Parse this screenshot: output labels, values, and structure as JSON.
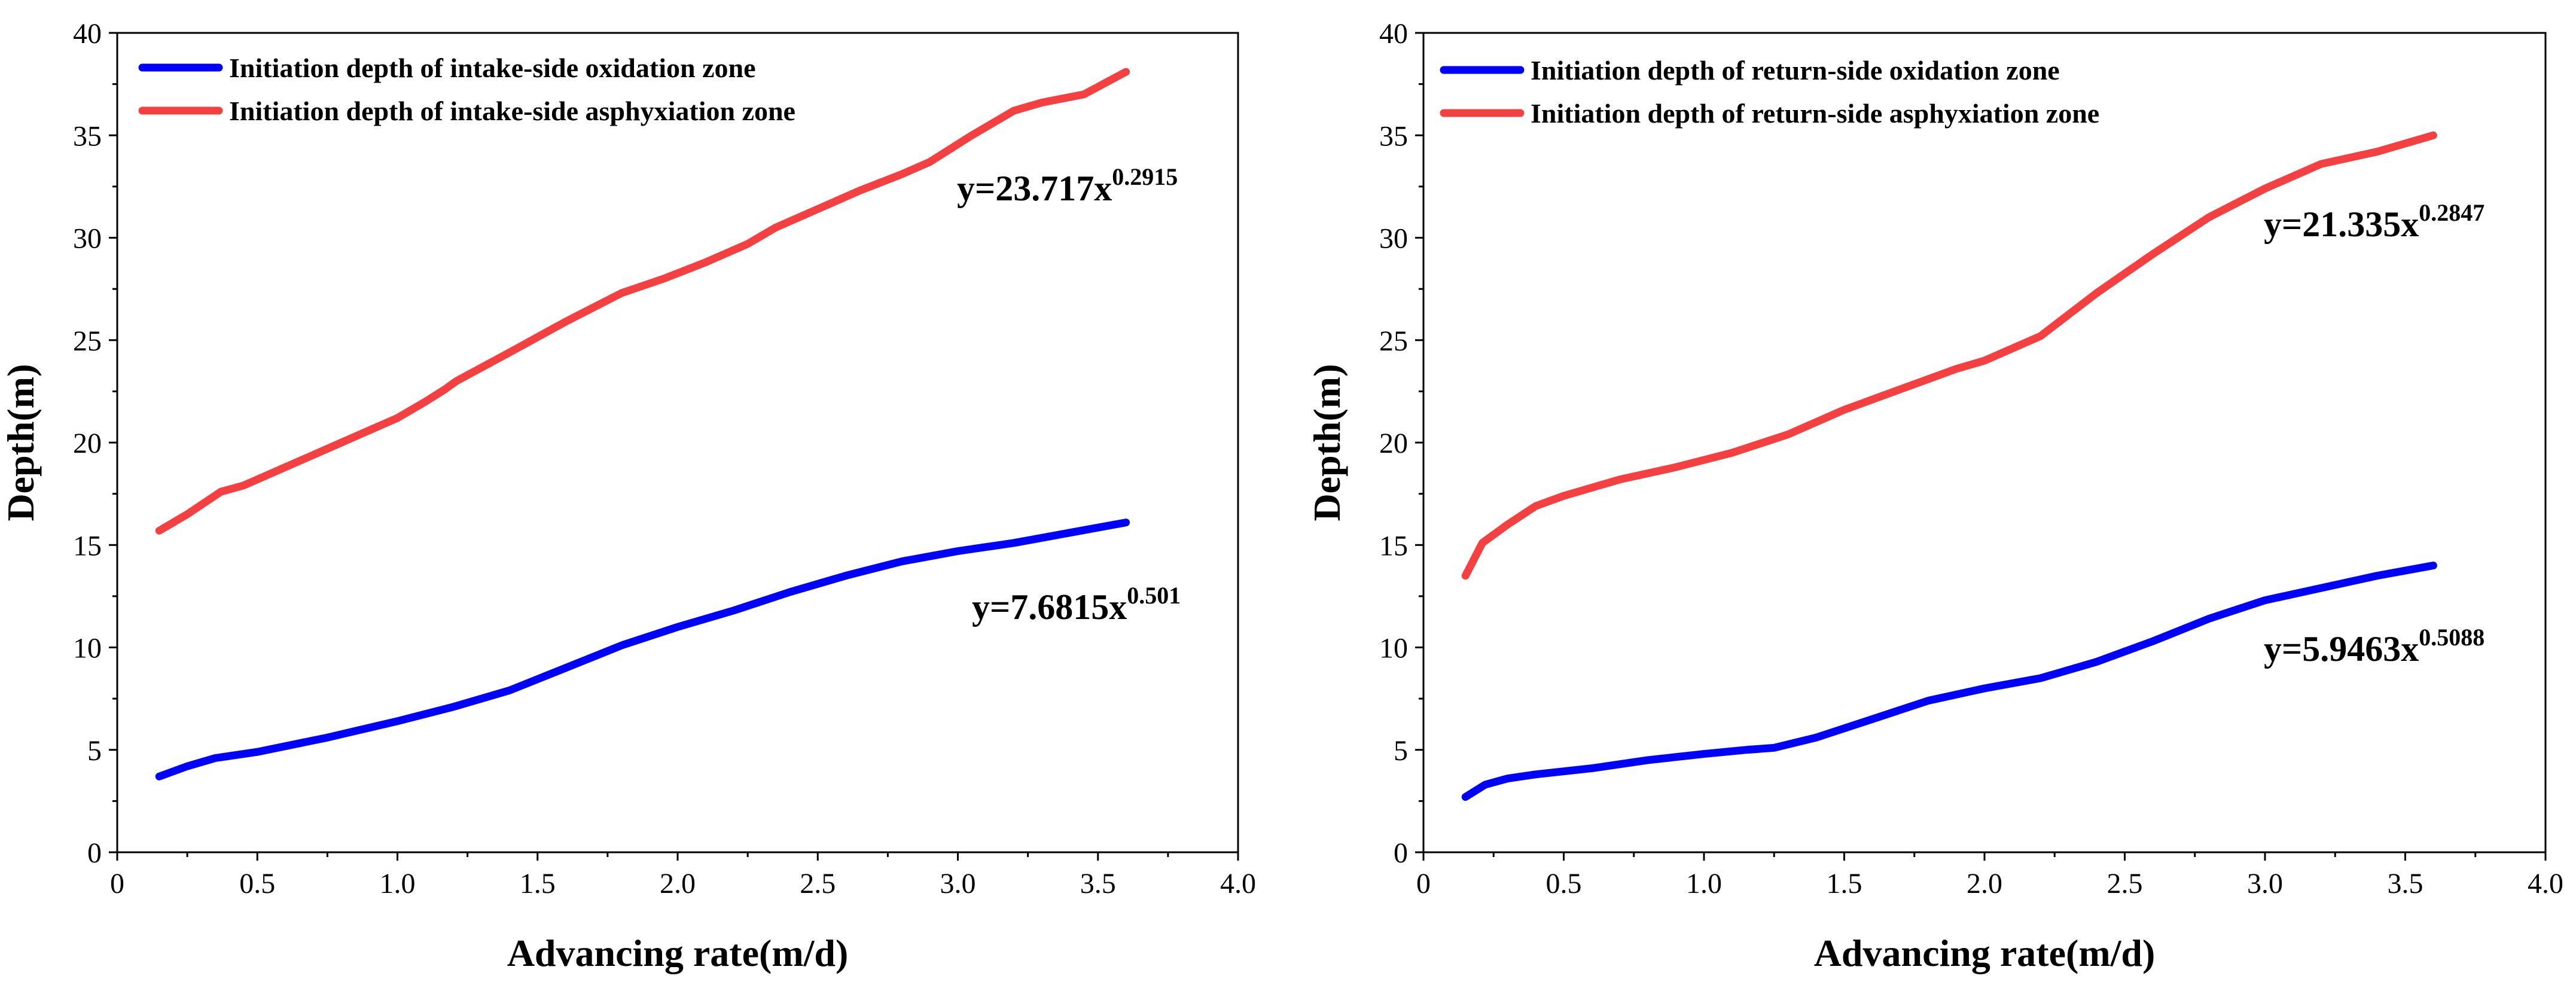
{
  "chart_data": [
    {
      "type": "line",
      "xlabel": "Advancing rate(m/d)",
      "ylabel": "Depth(m)",
      "xlim": [
        0,
        4.0
      ],
      "ylim": [
        0,
        40
      ],
      "xticks": [
        "0",
        "0.5",
        "1.0",
        "1.5",
        "2.0",
        "2.5",
        "3.0",
        "3.5",
        "4.0"
      ],
      "yticks": [
        "0",
        "5",
        "10",
        "15",
        "20",
        "25",
        "30",
        "35",
        "40"
      ],
      "legend_position": "top-left",
      "series": [
        {
          "name": "Initiation depth of intake-side oxidation zone",
          "color": "#0000ff",
          "x": [
            0.15,
            0.25,
            0.35,
            0.5,
            0.75,
            1.0,
            1.2,
            1.4,
            1.6,
            1.8,
            2.0,
            2.2,
            2.4,
            2.6,
            2.8,
            3.0,
            3.2,
            3.4,
            3.6
          ],
          "y": [
            3.7,
            4.2,
            4.6,
            4.9,
            5.6,
            6.4,
            7.1,
            7.9,
            9.0,
            10.1,
            11.0,
            11.8,
            12.7,
            13.5,
            14.2,
            14.7,
            15.1,
            15.6,
            16.1
          ],
          "equation": {
            "base": "y=7.6815x",
            "exponent": "0.501"
          }
        },
        {
          "name": "Initiation depth of intake-side asphyxiation zone",
          "color": "#f44040",
          "x": [
            0.15,
            0.25,
            0.37,
            0.45,
            0.6,
            0.8,
            1.0,
            1.1,
            1.17,
            1.21,
            1.4,
            1.6,
            1.8,
            1.95,
            2.1,
            2.25,
            2.35,
            2.5,
            2.65,
            2.8,
            2.9,
            3.05,
            3.2,
            3.3,
            3.45,
            3.6
          ],
          "y": [
            15.7,
            16.5,
            17.6,
            17.9,
            18.8,
            20.0,
            21.2,
            22.0,
            22.6,
            23.0,
            24.4,
            25.9,
            27.3,
            28.0,
            28.8,
            29.7,
            30.5,
            31.4,
            32.3,
            33.1,
            33.7,
            35.0,
            36.2,
            36.6,
            37.0,
            38.1
          ],
          "equation": {
            "base": "y=23.717x",
            "exponent": "0.2915"
          }
        }
      ]
    },
    {
      "type": "line",
      "xlabel": "Advancing rate(m/d)",
      "ylabel": "Depth(m)",
      "xlim": [
        0,
        4.0
      ],
      "ylim": [
        0,
        40
      ],
      "xticks": [
        "0",
        "0.5",
        "1.0",
        "1.5",
        "2.0",
        "2.5",
        "3.0",
        "3.5",
        "4.0"
      ],
      "yticks": [
        "0",
        "5",
        "10",
        "15",
        "20",
        "25",
        "30",
        "35",
        "40"
      ],
      "legend_position": "top-left",
      "series": [
        {
          "name": "Initiation depth of return-side oxidation zone",
          "color": "#0000ff",
          "x": [
            0.15,
            0.22,
            0.3,
            0.4,
            0.6,
            0.8,
            1.0,
            1.15,
            1.25,
            1.4,
            1.6,
            1.8,
            2.0,
            2.2,
            2.4,
            2.6,
            2.8,
            3.0,
            3.2,
            3.4,
            3.6
          ],
          "y": [
            2.7,
            3.3,
            3.6,
            3.8,
            4.1,
            4.5,
            4.8,
            5.0,
            5.1,
            5.6,
            6.5,
            7.4,
            8.0,
            8.5,
            9.3,
            10.3,
            11.4,
            12.3,
            12.9,
            13.5,
            14.0
          ],
          "equation": {
            "base": "y=5.9463x",
            "exponent": "0.5088"
          }
        },
        {
          "name": "Initiation depth of return-side asphyxiation zone",
          "color": "#f44040",
          "x": [
            0.15,
            0.21,
            0.3,
            0.4,
            0.5,
            0.7,
            0.9,
            1.1,
            1.3,
            1.5,
            1.7,
            1.9,
            2.0,
            2.2,
            2.4,
            2.6,
            2.8,
            3.0,
            3.2,
            3.4,
            3.6
          ],
          "y": [
            13.5,
            15.1,
            16.0,
            16.9,
            17.4,
            18.2,
            18.8,
            19.5,
            20.4,
            21.6,
            22.6,
            23.6,
            24.0,
            25.2,
            27.3,
            29.2,
            31.0,
            32.4,
            33.6,
            34.2,
            35.0
          ],
          "equation": {
            "base": "y=21.335x",
            "exponent": "0.2847"
          }
        }
      ]
    }
  ]
}
